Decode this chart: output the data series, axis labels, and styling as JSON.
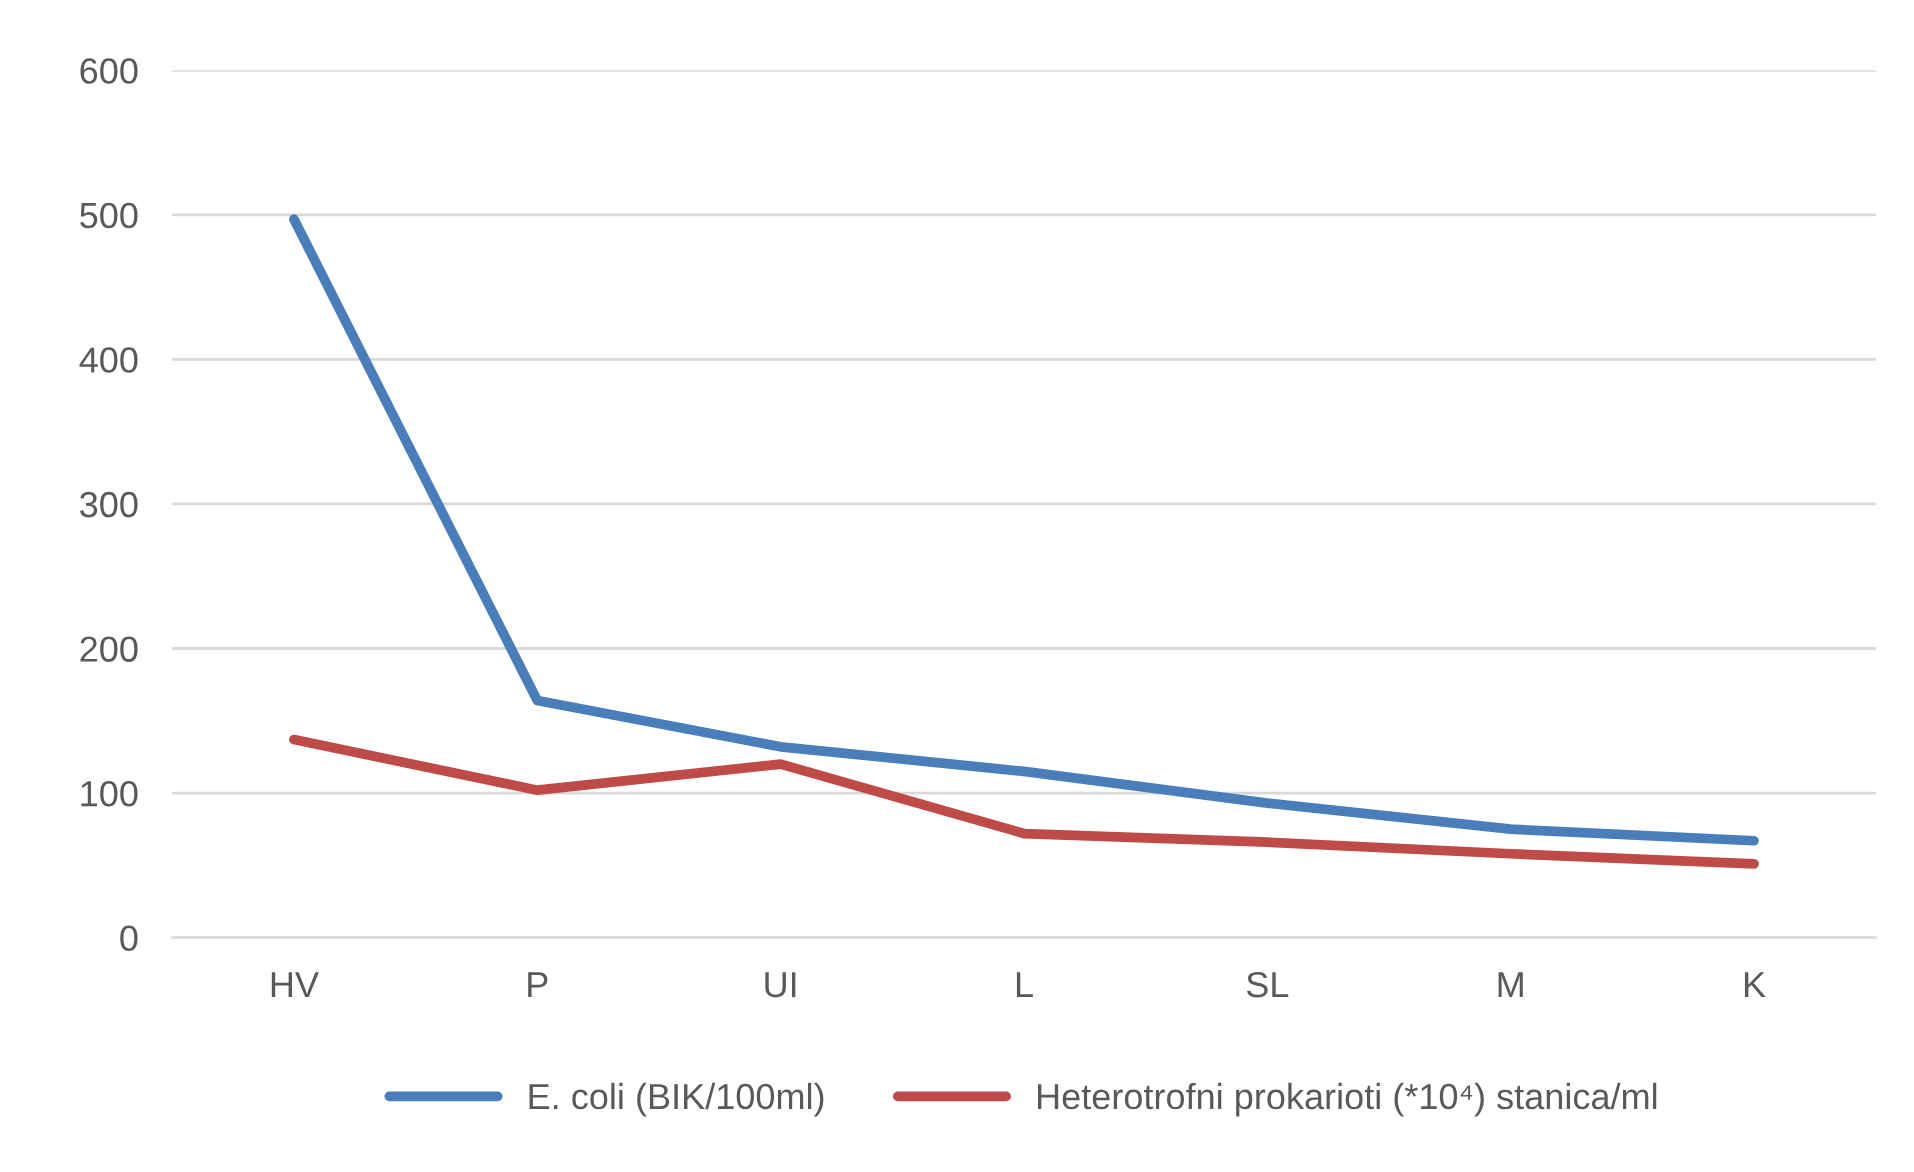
{
  "chart_data": {
    "type": "line",
    "categories": [
      "HV",
      "P",
      "UI",
      "L",
      "SL",
      "M",
      "K"
    ],
    "series": [
      {
        "name": "E. coli (BIK/100ml)",
        "color": "#4a7ebb",
        "values": [
          497,
          164,
          132,
          115,
          93,
          75,
          67
        ]
      },
      {
        "name": "Heterotrofni prokarioti (*10⁴) stanica/ml",
        "color": "#be4b48",
        "values": [
          137,
          102,
          120,
          72,
          66,
          58,
          51
        ]
      }
    ],
    "ylim": [
      0,
      600
    ],
    "yticks": [
      0,
      100,
      200,
      300,
      400,
      500,
      600
    ],
    "grid": "y",
    "legend": "bottom",
    "marker": "none",
    "line_style": "solid"
  }
}
